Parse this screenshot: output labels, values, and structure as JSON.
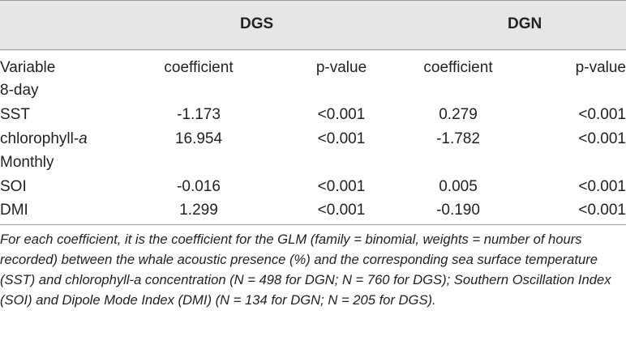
{
  "header": {
    "group1": "DGS",
    "group2": "DGN"
  },
  "columns": {
    "variable": "Variable",
    "coef1": "coefficient",
    "p1": "p-value",
    "coef2": "coefficient",
    "p2": "p-value"
  },
  "sections": {
    "eight_day": {
      "label": "8-day",
      "rows": [
        {
          "variable": "SST",
          "dgs_coef": "-1.173",
          "dgs_p": "<0.001",
          "dgn_coef": "0.279",
          "dgn_p": "<0.001"
        },
        {
          "variable_prefix": "chlorophyll-",
          "variable_italic": "a",
          "dgs_coef": "16.954",
          "dgs_p": "<0.001",
          "dgn_coef": "-1.782",
          "dgn_p": "<0.001"
        }
      ]
    },
    "monthly": {
      "label": "Monthly",
      "rows": [
        {
          "variable": "SOI",
          "dgs_coef": "-0.016",
          "dgs_p": "<0.001",
          "dgn_coef": "0.005",
          "dgn_p": "<0.001"
        },
        {
          "variable": "DMI",
          "dgs_coef": "1.299",
          "dgs_p": "<0.001",
          "dgn_coef": "-0.190",
          "dgn_p": "<0.001"
        }
      ]
    }
  },
  "footnote": "For each coefficient, it is the coefficient for the GLM (family = binomial, weights = number of hours recorded) between the whale acoustic presence (%) and the corresponding sea surface temperature (SST) and chlorophyll-a concentration (N = 498 for DGN; N = 760 for DGS); Southern Oscillation Index (SOI) and Dipole Mode Index (DMI) (N = 134 for DGN; N = 205 for DGS)."
}
